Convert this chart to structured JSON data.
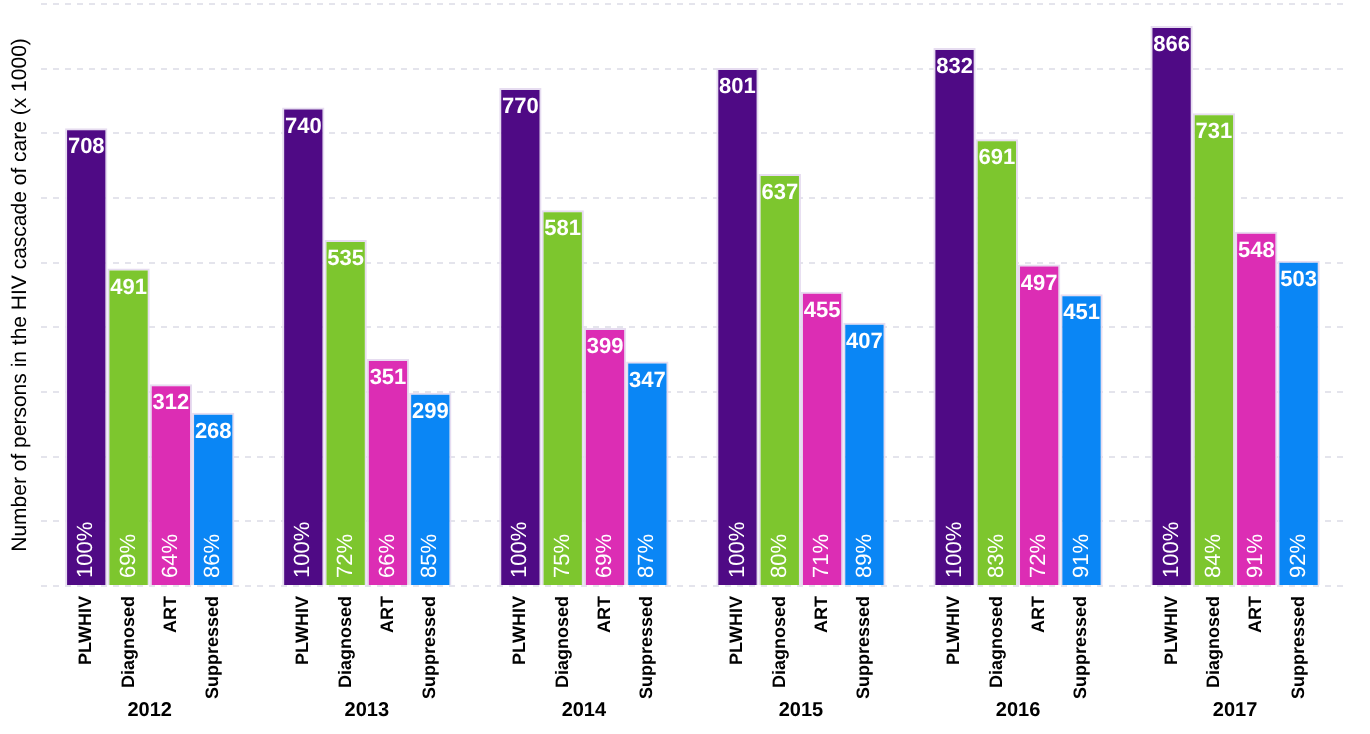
{
  "chart_data": {
    "type": "bar",
    "ylabel": "Number of persons in the HIV cascade of care (x 1000)",
    "categories": [
      "2012",
      "2013",
      "2014",
      "2015",
      "2016",
      "2017"
    ],
    "series": [
      {
        "name": "PLWHIV",
        "color": "#4f0a85",
        "values": [
          708,
          740,
          770,
          801,
          832,
          866
        ]
      },
      {
        "name": "Diagnosed",
        "color": "#7dc62e",
        "values": [
          491,
          535,
          581,
          637,
          691,
          731
        ]
      },
      {
        "name": "ART",
        "color": "#dc2db4",
        "values": [
          312,
          351,
          399,
          455,
          497,
          548
        ]
      },
      {
        "name": "Suppressed",
        "color": "#0a86f5",
        "values": [
          268,
          299,
          347,
          407,
          451,
          503
        ]
      }
    ],
    "annotations": [
      {
        "text": "100%",
        "x": "2012",
        "y": 0
      },
      {
        "text": "69%",
        "x": "2012",
        "y": 0
      },
      {
        "text": "64%",
        "x": "2012",
        "y": 0
      },
      {
        "text": "86%",
        "x": "2012",
        "y": 0
      },
      {
        "text": "100%",
        "x": "2013",
        "y": 0
      },
      {
        "text": "72%",
        "x": "2013",
        "y": 0
      },
      {
        "text": "66%",
        "x": "2013",
        "y": 0
      },
      {
        "text": "85%",
        "x": "2013",
        "y": 0
      },
      {
        "text": "100%",
        "x": "2014",
        "y": 0
      },
      {
        "text": "75%",
        "x": "2014",
        "y": 0
      },
      {
        "text": "69%",
        "x": "2014",
        "y": 0
      },
      {
        "text": "87%",
        "x": "2014",
        "y": 0
      },
      {
        "text": "100%",
        "x": "2015",
        "y": 0
      },
      {
        "text": "80%",
        "x": "2015",
        "y": 0
      },
      {
        "text": "71%",
        "x": "2015",
        "y": 0
      },
      {
        "text": "89%",
        "x": "2015",
        "y": 0
      },
      {
        "text": "100%",
        "x": "2016",
        "y": 0
      },
      {
        "text": "83%",
        "x": "2016",
        "y": 0
      },
      {
        "text": "72%",
        "x": "2016",
        "y": 0
      },
      {
        "text": "91%",
        "x": "2016",
        "y": 0
      },
      {
        "text": "100%",
        "x": "2017",
        "y": 0
      },
      {
        "text": "84%",
        "x": "2017",
        "y": 0
      },
      {
        "text": "91%",
        "x": "2017",
        "y": 0
      },
      {
        "text": "92%",
        "x": "2017",
        "y": 0
      }
    ],
    "grid": "y",
    "legend": false,
    "tick_labels": "x",
    "data_labels": true
  }
}
